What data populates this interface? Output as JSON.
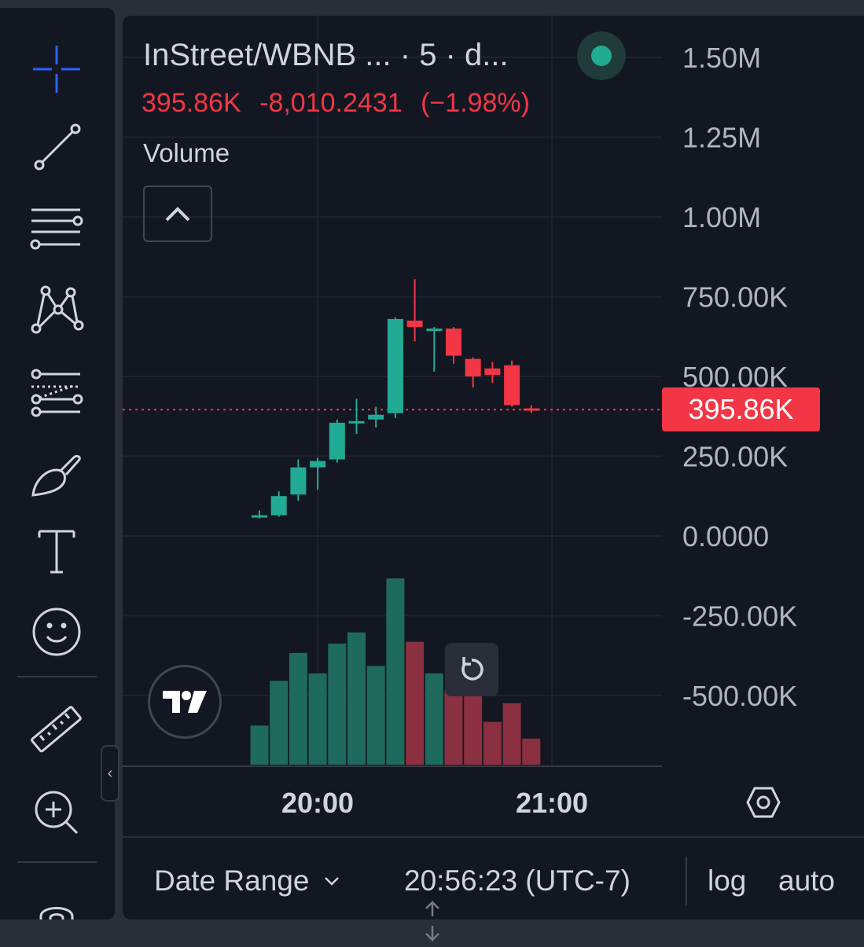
{
  "header": {
    "symbol": "InStreet/WBNB ... · 5 · d...",
    "price": "395.86K",
    "change": "-8,010.2431",
    "change_pct": "(−1.98%)",
    "status_color": "#22ab94"
  },
  "indicator": {
    "label": "Volume"
  },
  "toolbar": {
    "tools": [
      {
        "name": "crosshair-icon"
      },
      {
        "name": "trend-line-icon"
      },
      {
        "name": "horizontal-lines-icon"
      },
      {
        "name": "pattern-icon"
      },
      {
        "name": "fib-retracement-icon"
      },
      {
        "name": "brush-icon"
      },
      {
        "name": "text-icon"
      },
      {
        "name": "emoji-icon"
      },
      {
        "name": "ruler-icon"
      },
      {
        "name": "zoom-in-icon"
      },
      {
        "name": "magnet-icon"
      }
    ],
    "collapse_glyph": "‹"
  },
  "price_axis": {
    "labels": [
      "1.50M",
      "1.25M",
      "1.00M",
      "750.00K",
      "500.00K",
      "250.00K",
      "0.0000",
      "-250.00K",
      "-500.00K"
    ],
    "current_price_label": "395.86K"
  },
  "time_axis": {
    "labels": [
      "20:00",
      "21:00"
    ]
  },
  "colors": {
    "up": "#22ab94",
    "down": "#f23645",
    "up_volume": "#1e6b5e",
    "down_volume": "#8a3040",
    "background": "#131722"
  },
  "chart_data": {
    "type": "candlestick",
    "y_axis": {
      "min": -500000,
      "max": 1500000,
      "step": 250000
    },
    "current_price": 395860,
    "candles": [
      {
        "o": 60000,
        "h": 80000,
        "l": 55000,
        "c": 65000,
        "v": 0.21
      },
      {
        "o": 65000,
        "h": 140000,
        "l": 60000,
        "c": 125000,
        "v": 0.45
      },
      {
        "o": 130000,
        "h": 240000,
        "l": 110000,
        "c": 215000,
        "v": 0.6
      },
      {
        "o": 215000,
        "h": 245000,
        "l": 145000,
        "c": 235000,
        "v": 0.49
      },
      {
        "o": 240000,
        "h": 365000,
        "l": 230000,
        "c": 355000,
        "v": 0.65
      },
      {
        "o": 360000,
        "h": 430000,
        "l": 320000,
        "c": 360000,
        "v": 0.71
      },
      {
        "o": 365000,
        "h": 405000,
        "l": 340000,
        "c": 380000,
        "v": 0.53
      },
      {
        "o": 385000,
        "h": 685000,
        "l": 370000,
        "c": 680000,
        "v": 1.0
      },
      {
        "o": 675000,
        "h": 805000,
        "l": 610000,
        "c": 655000,
        "v": 0.66
      },
      {
        "o": 650000,
        "h": 655000,
        "l": 515000,
        "c": 650000,
        "v": 0.49
      },
      {
        "o": 650000,
        "h": 655000,
        "l": 540000,
        "c": 565000,
        "v": 0.4
      },
      {
        "o": 555000,
        "h": 560000,
        "l": 465000,
        "c": 500000,
        "v": 0.5
      },
      {
        "o": 525000,
        "h": 545000,
        "l": 480000,
        "c": 505000,
        "v": 0.23
      },
      {
        "o": 535000,
        "h": 550000,
        "l": 405000,
        "c": 410000,
        "v": 0.33
      },
      {
        "o": 400000,
        "h": 410000,
        "l": 385000,
        "c": 396000,
        "v": 0.14
      }
    ]
  },
  "bottom_bar": {
    "date_range_label": "Date Range",
    "clock": "20:56:23 (UTC-7)",
    "log_label": "log",
    "auto_label": "auto"
  }
}
